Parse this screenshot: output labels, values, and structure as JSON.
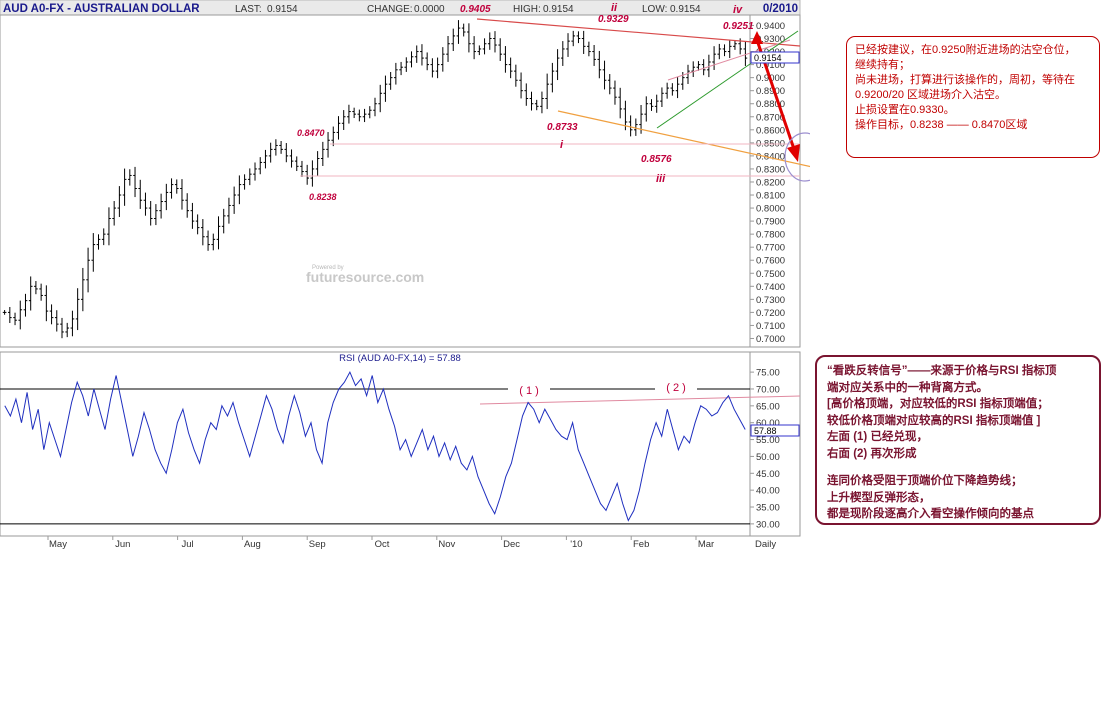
{
  "header": {
    "title": "AUD A0-FX - AUSTRALIAN DOLLAR",
    "last_label": "LAST:",
    "last_value": "0.9154",
    "change_label": "CHANGE:",
    "change_value": "0.0000",
    "high_label": "HIGH:",
    "high_value": "0.9154",
    "low_label": "LOW:",
    "low_value": "0.9154",
    "date_fragment": "0/2010"
  },
  "watermark": {
    "small": "Powered by",
    "brand": "futuresource.com"
  },
  "colors": {
    "bars": "#000000",
    "rsi_line": "#1f2fbf",
    "annotation_red": "#c0003c",
    "wedge_green": "#2c9a2c",
    "orange_line": "#f0a040",
    "arrow": "#e00000",
    "circle": "#9c8fcf",
    "header_bg": "#eaeaea"
  },
  "chart_data": [
    {
      "type": "ohlc",
      "title": "AUD A0-FX - AUSTRALIAN DOLLAR",
      "frequency_label": "Daily",
      "x_tick_labels": [
        "May",
        "Jun",
        "Jul",
        "Aug",
        "Sep",
        "Oct",
        "Nov",
        "Dec",
        "'10",
        "Feb",
        "Mar"
      ],
      "y_range": [
        0.695,
        0.9465
      ],
      "y_tick_labels": [
        "0.9400",
        "0.9300",
        "0.9200",
        "0.9100",
        "0.9000",
        "0.8900",
        "0.8800",
        "0.8700",
        "0.8600",
        "0.8500",
        "0.8400",
        "0.8300",
        "0.8200",
        "0.8100",
        "0.8000",
        "0.7900",
        "0.7800",
        "0.7700",
        "0.7600",
        "0.7500",
        "0.7400",
        "0.7300",
        "0.7200",
        "0.7100",
        "0.7000"
      ],
      "last_price_tag": "0.9154",
      "series": [
        {
          "values": [
            0.72,
            0.716,
            0.714,
            0.722,
            0.729,
            0.74,
            0.738,
            0.733,
            0.721,
            0.716,
            0.711,
            0.705,
            0.708,
            0.715,
            0.73,
            0.745,
            0.76,
            0.772,
            0.776,
            0.78,
            0.792,
            0.8,
            0.81,
            0.822,
            0.825,
            0.815,
            0.806,
            0.8,
            0.792,
            0.798,
            0.805,
            0.812,
            0.818,
            0.815,
            0.806,
            0.798,
            0.79,
            0.785,
            0.778,
            0.772,
            0.776,
            0.786,
            0.794,
            0.802,
            0.81,
            0.818,
            0.822,
            0.826,
            0.83,
            0.835,
            0.84,
            0.845,
            0.848,
            0.845,
            0.84,
            0.836,
            0.832,
            0.828,
            0.823,
            0.83,
            0.838,
            0.845,
            0.852,
            0.858,
            0.865,
            0.87,
            0.874,
            0.872,
            0.87,
            0.872,
            0.875,
            0.88,
            0.888,
            0.895,
            0.9,
            0.906,
            0.908,
            0.912,
            0.916,
            0.92,
            0.915,
            0.91,
            0.905,
            0.91,
            0.918,
            0.926,
            0.932,
            0.938,
            0.935,
            0.926,
            0.92,
            0.922,
            0.926,
            0.93,
            0.925,
            0.918,
            0.91,
            0.905,
            0.898,
            0.89,
            0.884,
            0.88,
            0.878,
            0.884,
            0.895,
            0.905,
            0.915,
            0.922,
            0.928,
            0.932,
            0.93,
            0.924,
            0.92,
            0.914,
            0.906,
            0.898,
            0.892,
            0.885,
            0.876,
            0.866,
            0.86,
            0.864,
            0.872,
            0.88,
            0.878,
            0.882,
            0.888,
            0.892,
            0.89,
            0.895,
            0.9,
            0.905,
            0.908,
            0.91,
            0.906,
            0.912,
            0.918,
            0.922,
            0.92,
            0.924,
            0.926,
            0.922,
            0.915
          ]
        }
      ],
      "annotations": [
        {
          "label": "0.9405"
        },
        {
          "label": "ii"
        },
        {
          "label": "0.9329"
        },
        {
          "label": "iv"
        },
        {
          "label": "0.9251"
        },
        {
          "label": "0.8470"
        },
        {
          "label": "i"
        },
        {
          "label": "0.8733"
        },
        {
          "label": "0.8576"
        },
        {
          "label": "iii"
        },
        {
          "label": "0.8238"
        }
      ]
    },
    {
      "type": "line",
      "title": "RSI (AUD A0-FX,14) = 57.88",
      "y_range": [
        27,
        78
      ],
      "y_tick_labels": [
        "75.00",
        "70.00",
        "65.00",
        "60.00",
        "55.00",
        "50.00",
        "45.00",
        "40.00",
        "35.00",
        "30.00"
      ],
      "reference_lines": [
        70,
        30
      ],
      "last_value_tag": "57.88",
      "divergence_labels": [
        "( 1 )",
        "( 2 )"
      ],
      "series": [
        {
          "values": [
            65,
            62,
            67,
            60,
            69,
            58,
            64,
            52,
            60,
            55,
            50,
            58,
            66,
            72,
            68,
            62,
            70,
            64,
            58,
            67,
            74,
            66,
            58,
            50,
            56,
            63,
            58,
            52,
            48,
            45,
            52,
            60,
            64,
            57,
            52,
            48,
            55,
            60,
            58,
            65,
            62,
            66,
            60,
            55,
            50,
            56,
            62,
            68,
            64,
            58,
            54,
            62,
            68,
            63,
            56,
            60,
            52,
            48,
            60,
            66,
            70,
            72,
            75,
            71,
            73,
            68,
            74,
            66,
            70,
            64,
            59,
            52,
            55,
            50,
            54,
            58,
            52,
            56,
            50,
            54,
            49,
            53,
            48,
            46,
            50,
            44,
            40,
            36,
            33,
            38,
            44,
            48,
            55,
            62,
            66,
            64,
            60,
            64,
            61,
            58,
            56,
            55,
            60,
            52,
            48,
            44,
            40,
            36,
            34,
            38,
            42,
            36,
            31,
            34,
            40,
            48,
            55,
            60,
            56,
            64,
            58,
            52,
            56,
            54,
            60,
            65,
            64,
            62,
            63,
            66,
            68,
            64,
            61,
            58
          ]
        }
      ]
    }
  ],
  "notes": {
    "top": {
      "line1": "已经按建议，在0.9250附近进场的沽空仓位，",
      "line2": "继续持有；",
      "line3": "尚未进场，打算进行该操作的，周初，等待在",
      "line4": "0.9200/20 区域进场介入沽空。",
      "line5": "止损设置在0.9330。",
      "line6": "操作目标，0.8238 —— 0.8470区域"
    },
    "bottom": {
      "line1": "“看跌反转信号”——来源于价格与RSI 指标顶",
      "line2": "端对应关系中的一种背离方式。",
      "line3": "[高价格顶端，对应较低的RSI 指标顶端值；",
      "line4": "较低价格顶端对应较高的RSI 指标顶端值 ]",
      "line5": "左面 (1) 已经兑现，",
      "line6": "右面 (2) 再次形成",
      "line7": "连同价格受阻于顶端价位下降趋势线；",
      "line8": "上升楔型反弹形态，",
      "line9": "都是现阶段逐高介入看空操作倾向的基点"
    }
  }
}
